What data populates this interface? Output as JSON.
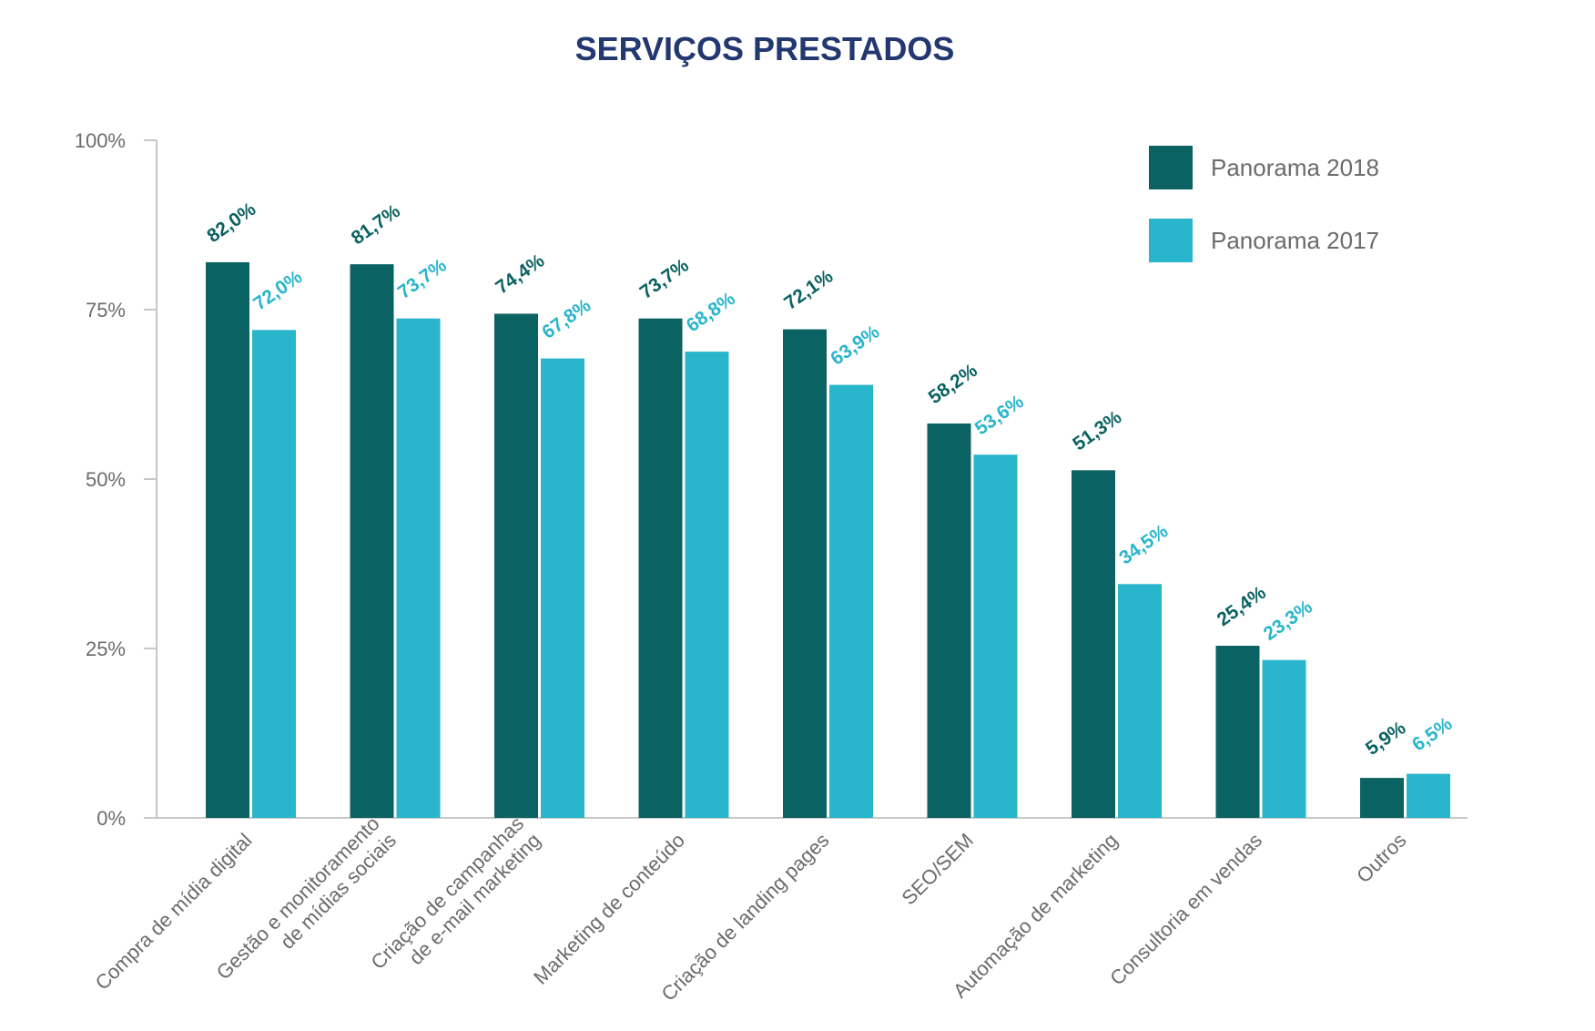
{
  "chart_data": {
    "type": "bar",
    "title": "SERVIÇOS PRESTADOS",
    "xlabel": "",
    "ylabel": "",
    "ylim": [
      0,
      100
    ],
    "yticks": [
      {
        "value": 0,
        "label": "0%"
      },
      {
        "value": 25,
        "label": "25%"
      },
      {
        "value": 50,
        "label": "50%"
      },
      {
        "value": 75,
        "label": "75%"
      },
      {
        "value": 100,
        "label": "100%"
      }
    ],
    "categories": [
      [
        "Compra de mídia digital"
      ],
      [
        "Gestão e monitoramento",
        "de mídias sociais"
      ],
      [
        "Criação de campanhas",
        "de e-mail marketing"
      ],
      [
        "Marketing de conteúdo"
      ],
      [
        "Criação de landing pages"
      ],
      [
        "SEO/SEM"
      ],
      [
        "Automação de marketing"
      ],
      [
        "Consultoria em vendas"
      ],
      [
        "Outros"
      ]
    ],
    "series": [
      {
        "name": "Panorama 2018",
        "color": "#0b6262",
        "values": [
          82.0,
          81.7,
          74.4,
          73.7,
          72.1,
          58.2,
          51.3,
          25.4,
          5.9
        ],
        "labels": [
          "82,0%",
          "81,7%",
          "74,4%",
          "73,7%",
          "72,1%",
          "58,2%",
          "51,3%",
          "25,4%",
          "5,9%"
        ]
      },
      {
        "name": "Panorama 2017",
        "color": "#29b5cc",
        "values": [
          72.0,
          73.7,
          67.8,
          68.8,
          63.9,
          53.6,
          34.5,
          23.3,
          6.5
        ],
        "labels": [
          "72,0%",
          "73,7%",
          "67,8%",
          "68,8%",
          "63,9%",
          "53,6%",
          "34,5%",
          "23,3%",
          "6,5%"
        ]
      }
    ],
    "legend_position": "top-right",
    "grid": false,
    "colors": {
      "title": "#233871",
      "axis": "#c8c8c8",
      "tick_text": "#6b6b6b"
    }
  }
}
